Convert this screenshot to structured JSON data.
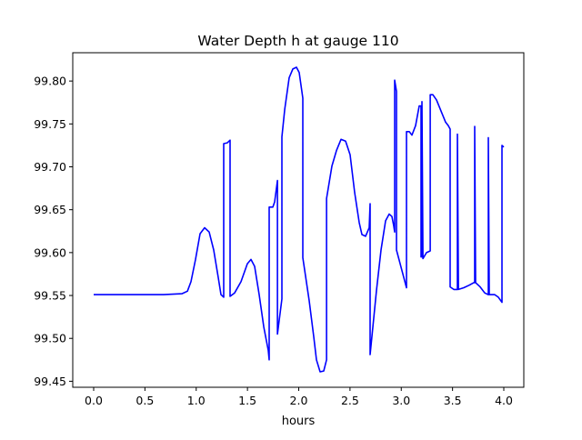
{
  "chart_data": {
    "type": "line",
    "title": "Water Depth h at gauge 110",
    "xlabel": "hours",
    "ylabel": "",
    "xlim": [
      -0.204,
      4.195
    ],
    "ylim": [
      99.443,
      99.833
    ],
    "xticks": [
      0.0,
      0.5,
      1.0,
      1.5,
      2.0,
      2.5,
      3.0,
      3.5,
      4.0
    ],
    "xtick_labels": [
      "0.0",
      "0.5",
      "1.0",
      "1.5",
      "2.0",
      "2.5",
      "3.0",
      "3.5",
      "4.0"
    ],
    "yticks": [
      99.45,
      99.5,
      99.55,
      99.6,
      99.65,
      99.7,
      99.75,
      99.8
    ],
    "ytick_labels": [
      "99.45",
      "99.50",
      "99.55",
      "99.60",
      "99.65",
      "99.70",
      "99.75",
      "99.80"
    ],
    "grid": false,
    "series": [
      {
        "name": "h",
        "color": "#0000ff",
        "x": [
          0,
          0.683,
          0.86,
          0.914,
          0.949,
          0.993,
          1.038,
          1.082,
          1.126,
          1.171,
          1.215,
          1.242,
          1.268,
          1.268,
          1.304,
          1.33,
          1.33,
          1.375,
          1.437,
          1.499,
          1.534,
          1.57,
          1.614,
          1.659,
          1.703,
          1.712,
          1.712,
          1.747,
          1.765,
          1.792,
          1.792,
          1.836,
          1.836,
          1.863,
          1.907,
          1.942,
          1.978,
          2.004,
          2.04,
          2.04,
          2.102,
          2.146,
          2.173,
          2.208,
          2.244,
          2.271,
          2.271,
          2.324,
          2.368,
          2.412,
          2.457,
          2.501,
          2.545,
          2.59,
          2.616,
          2.652,
          2.687,
          2.696,
          2.696,
          2.723,
          2.758,
          2.803,
          2.847,
          2.882,
          2.909,
          2.927,
          2.936,
          2.936,
          2.953,
          2.953,
          2.989,
          3.024,
          3.051,
          3.051,
          3.078,
          3.104,
          3.14,
          3.175,
          3.193,
          3.193,
          3.202,
          3.202,
          3.211,
          3.246,
          3.282,
          3.282,
          3.308,
          3.344,
          3.388,
          3.432,
          3.459,
          3.477,
          3.477,
          3.512,
          3.548,
          3.548,
          3.557,
          3.61,
          3.663,
          3.707,
          3.716,
          3.716,
          3.725,
          3.769,
          3.814,
          3.849,
          3.849,
          3.858,
          3.911,
          3.947,
          3.982,
          3.982,
          4.0
        ],
        "y": [
          99.551,
          99.551,
          99.552,
          99.555,
          99.566,
          99.592,
          99.622,
          99.629,
          99.624,
          99.603,
          99.571,
          99.551,
          99.548,
          99.727,
          99.728,
          99.731,
          99.549,
          99.553,
          99.566,
          99.587,
          99.592,
          99.584,
          99.551,
          99.513,
          99.486,
          99.475,
          99.653,
          99.653,
          99.659,
          99.684,
          99.505,
          99.546,
          99.735,
          99.767,
          99.804,
          99.814,
          99.816,
          99.81,
          99.78,
          99.594,
          99.544,
          99.502,
          99.475,
          99.461,
          99.462,
          99.475,
          99.663,
          99.701,
          99.719,
          99.732,
          99.73,
          99.714,
          99.67,
          99.635,
          99.621,
          99.619,
          99.629,
          99.657,
          99.481,
          99.513,
          99.556,
          99.603,
          99.637,
          99.645,
          99.642,
          99.631,
          99.624,
          99.801,
          99.788,
          99.603,
          99.587,
          99.571,
          99.559,
          99.741,
          99.741,
          99.737,
          99.748,
          99.771,
          99.771,
          99.595,
          99.595,
          99.776,
          99.593,
          99.6,
          99.602,
          99.784,
          99.784,
          99.778,
          99.765,
          99.752,
          99.748,
          99.744,
          99.56,
          99.557,
          99.557,
          99.738,
          99.557,
          99.559,
          99.562,
          99.565,
          99.565,
          99.747,
          99.565,
          99.56,
          99.553,
          99.551,
          99.734,
          99.551,
          99.551,
          99.548,
          99.542,
          99.725,
          99.723
        ]
      }
    ]
  }
}
